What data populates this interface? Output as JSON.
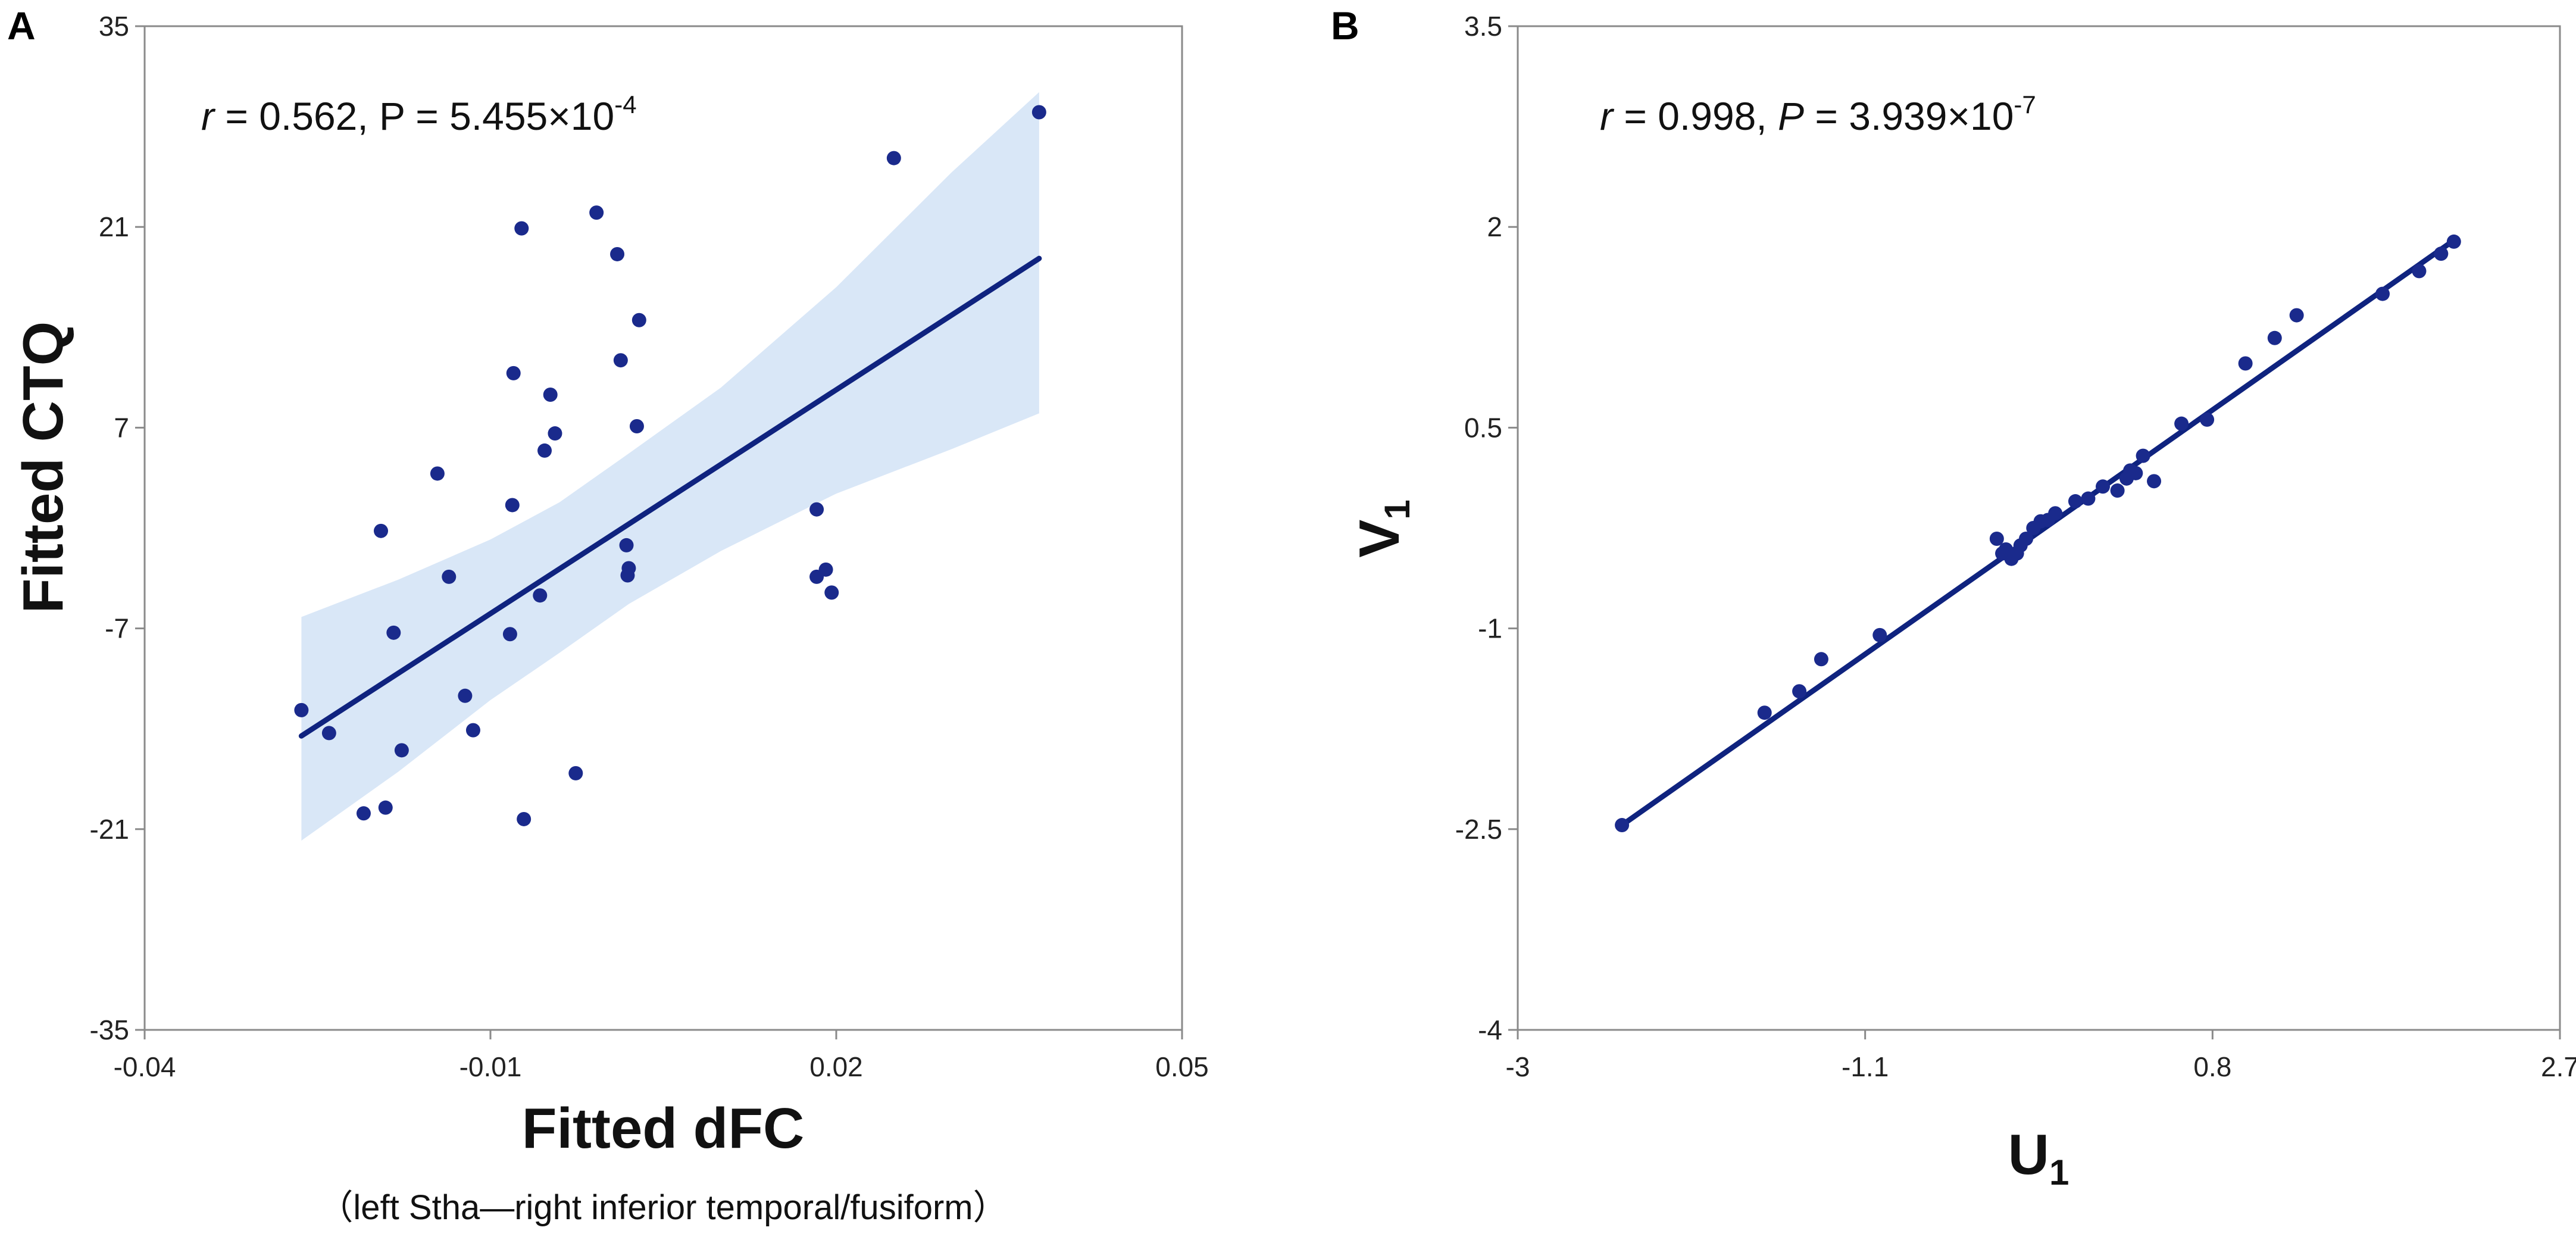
{
  "chart_data": [
    {
      "panel_label": "A",
      "type": "scatter",
      "xlabel": "Fitted dFC",
      "xlabel_sub": "（left Stha—right inferior temporal/fusiform）",
      "ylabel": "Fitted CTQ",
      "xlim": [
        -0.04,
        0.05
      ],
      "ylim": [
        -35,
        35
      ],
      "xticks": [
        -0.04,
        -0.01,
        0.02,
        0.05
      ],
      "xtick_labels": [
        "-0.04",
        "-0.01",
        "0.02",
        "0.05"
      ],
      "yticks": [
        -35,
        -21,
        -7,
        7,
        21,
        35
      ],
      "ytick_labels": [
        "-35",
        "-21",
        "-7",
        "7",
        "21",
        "35"
      ],
      "stat": {
        "r_symbol": "r",
        "r_text": " = 0.562, P = 5.455×10",
        "exponent": "-4"
      },
      "point_color": "#1a2a8c",
      "fit_color": "#0f237f",
      "band_color": "#d9e7f7",
      "points": [
        {
          "x": -0.0264,
          "y": -12.7
        },
        {
          "x": -0.024,
          "y": -14.3
        },
        {
          "x": -0.021,
          "y": -19.9
        },
        {
          "x": -0.0191,
          "y": -19.5
        },
        {
          "x": -0.0184,
          "y": -7.3
        },
        {
          "x": -0.0177,
          "y": -15.5
        },
        {
          "x": -0.0195,
          "y": -0.2
        },
        {
          "x": -0.0146,
          "y": 3.8
        },
        {
          "x": -0.0136,
          "y": -3.4
        },
        {
          "x": -0.0122,
          "y": -11.7
        },
        {
          "x": -0.0115,
          "y": -14.1
        },
        {
          "x": -0.0083,
          "y": -7.4
        },
        {
          "x": -0.008,
          "y": 10.8
        },
        {
          "x": -0.0073,
          "y": 20.9
        },
        {
          "x": -0.0071,
          "y": -20.3
        },
        {
          "x": -0.0057,
          "y": -4.7
        },
        {
          "x": -0.0053,
          "y": 5.4
        },
        {
          "x": -0.0048,
          "y": 9.3
        },
        {
          "x": -0.0044,
          "y": 6.6
        },
        {
          "x": -0.0026,
          "y": -17.1
        },
        {
          "x": -0.0081,
          "y": 1.6
        },
        {
          "x": -0.0008,
          "y": 22.0
        },
        {
          "x": 0.001,
          "y": 19.1
        },
        {
          "x": 0.0013,
          "y": 11.7
        },
        {
          "x": 0.0018,
          "y": -1.2
        },
        {
          "x": 0.0019,
          "y": -3.3
        },
        {
          "x": 0.002,
          "y": -2.8
        },
        {
          "x": 0.0029,
          "y": 14.5
        },
        {
          "x": 0.0027,
          "y": 7.1
        },
        {
          "x": 0.0183,
          "y": 1.3
        },
        {
          "x": 0.0183,
          "y": -3.4
        },
        {
          "x": 0.0191,
          "y": -2.9
        },
        {
          "x": 0.0196,
          "y": -4.5
        },
        {
          "x": 0.025,
          "y": 25.8
        },
        {
          "x": 0.0376,
          "y": 29.0
        }
      ],
      "fit_line": [
        [
          -0.0264,
          -14.5
        ],
        [
          0.0376,
          18.8
        ]
      ],
      "confidence_band": {
        "x": [
          -0.0264,
          -0.018,
          -0.01,
          -0.004,
          0.002,
          0.01,
          0.02,
          0.03,
          0.0376
        ],
        "upper": [
          -6.2,
          -3.6,
          -0.8,
          1.8,
          5.2,
          9.8,
          16.8,
          24.8,
          30.4
        ],
        "lower": [
          -21.8,
          -17.0,
          -12.0,
          -8.7,
          -5.3,
          -1.6,
          2.4,
          5.5,
          8.0
        ]
      }
    },
    {
      "panel_label": "B",
      "type": "scatter",
      "xlabel": "U",
      "xlabel_sub": "1",
      "ylabel": "V",
      "ylabel_sub": "1",
      "xlim": [
        -3,
        2.7
      ],
      "ylim": [
        -4,
        3.5
      ],
      "xticks": [
        -3,
        -1.1,
        0.8,
        2.7
      ],
      "xtick_labels": [
        "-3",
        "-1.1",
        "0.8",
        "2.7"
      ],
      "yticks": [
        -4,
        -2.5,
        -1,
        0.5,
        2,
        3.5
      ],
      "ytick_labels": [
        "-4",
        "-2.5",
        "-1",
        "0.5",
        "2",
        "3.5"
      ],
      "stat": {
        "r_symbol": "r",
        "r_text": " = 0.998, ",
        "p_symbol": "P",
        "p_text": " = 3.939×10",
        "exponent": "-7"
      },
      "point_color": "#1a2a8c",
      "fit_color": "#0f237f",
      "points": [
        {
          "x": -2.43,
          "y": -2.47
        },
        {
          "x": -1.65,
          "y": -1.63
        },
        {
          "x": -1.46,
          "y": -1.47
        },
        {
          "x": -1.34,
          "y": -1.23
        },
        {
          "x": -1.02,
          "y": -1.05
        },
        {
          "x": -0.38,
          "y": -0.33
        },
        {
          "x": -0.35,
          "y": -0.44
        },
        {
          "x": -0.33,
          "y": -0.41
        },
        {
          "x": -0.3,
          "y": -0.48
        },
        {
          "x": -0.27,
          "y": -0.44
        },
        {
          "x": -0.25,
          "y": -0.38
        },
        {
          "x": -0.22,
          "y": -0.33
        },
        {
          "x": -0.18,
          "y": -0.25
        },
        {
          "x": -0.14,
          "y": -0.2
        },
        {
          "x": -0.1,
          "y": -0.19
        },
        {
          "x": -0.06,
          "y": -0.14
        },
        {
          "x": 0.05,
          "y": -0.05
        },
        {
          "x": 0.12,
          "y": -0.03
        },
        {
          "x": 0.2,
          "y": 0.06
        },
        {
          "x": 0.28,
          "y": 0.03
        },
        {
          "x": 0.33,
          "y": 0.12
        },
        {
          "x": 0.35,
          "y": 0.18
        },
        {
          "x": 0.38,
          "y": 0.16
        },
        {
          "x": 0.42,
          "y": 0.29
        },
        {
          "x": 0.48,
          "y": 0.1
        },
        {
          "x": 0.63,
          "y": 0.53
        },
        {
          "x": 0.77,
          "y": 0.56
        },
        {
          "x": 0.98,
          "y": 0.98
        },
        {
          "x": 1.14,
          "y": 1.17
        },
        {
          "x": 1.26,
          "y": 1.34
        },
        {
          "x": 1.73,
          "y": 1.5
        },
        {
          "x": 1.93,
          "y": 1.67
        },
        {
          "x": 2.05,
          "y": 1.8
        },
        {
          "x": 2.12,
          "y": 1.89
        }
      ],
      "fit_line": [
        [
          -2.43,
          -2.47
        ],
        [
          2.12,
          1.9
        ]
      ]
    }
  ]
}
